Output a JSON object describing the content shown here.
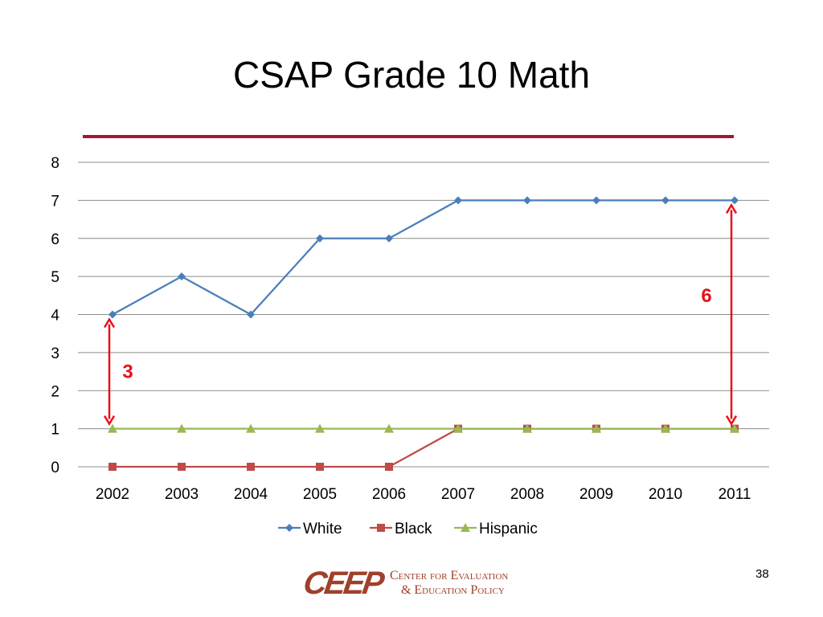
{
  "slide": {
    "title": "CSAP Grade 10 Math",
    "page_number": "38",
    "accent_color": "#a3172c"
  },
  "logo": {
    "mark": "CEEP",
    "line1": "Center for Evaluation",
    "line2": "& Education Policy",
    "color": "#a0402a"
  },
  "chart_data": {
    "type": "line",
    "title": "",
    "xlabel": "",
    "ylabel": "",
    "categories": [
      "2002",
      "2003",
      "2004",
      "2005",
      "2006",
      "2007",
      "2008",
      "2009",
      "2010",
      "2011"
    ],
    "ylim": [
      0,
      8
    ],
    "yticks": [
      "0",
      "1",
      "2",
      "3",
      "4",
      "5",
      "6",
      "7",
      "8"
    ],
    "grid": true,
    "legend_position": "bottom",
    "series": [
      {
        "name": "White",
        "values": [
          4,
          5,
          4,
          6,
          6,
          7,
          7,
          7,
          7,
          7
        ],
        "color": "#4a7ebb",
        "marker": "diamond"
      },
      {
        "name": "Black",
        "values": [
          0,
          0,
          0,
          0,
          0,
          1,
          1,
          1,
          1,
          1
        ],
        "color": "#be4b48",
        "marker": "square"
      },
      {
        "name": "Hispanic",
        "values": [
          1,
          1,
          1,
          1,
          1,
          1,
          1,
          1,
          1,
          1
        ],
        "color": "#98b954",
        "marker": "triangle"
      }
    ],
    "annotations": [
      {
        "label": "3",
        "category": "2002",
        "from": 1,
        "to": 4,
        "color": "#e8101a"
      },
      {
        "label": "6",
        "category": "2011",
        "from": 1,
        "to": 7,
        "color": "#e8101a"
      }
    ]
  }
}
